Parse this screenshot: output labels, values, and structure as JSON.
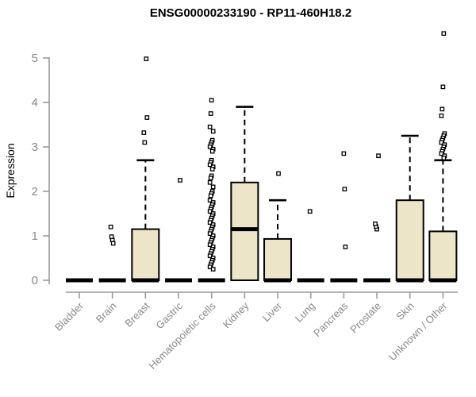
{
  "chart_data": {
    "type": "boxplot",
    "title": "ENSG00000233190 - RP11-460H18.2",
    "ylabel": "Expression",
    "xlabel": "",
    "yticks": [
      0,
      1,
      2,
      3,
      4,
      5
    ],
    "ylim": [
      0,
      5.7
    ],
    "grid": false,
    "legend": null,
    "categories": [
      "Bladder",
      "Brain",
      "Breast",
      "Gastric",
      "Hematopoietic cells",
      "Kidney",
      "Liver",
      "Lung",
      "Pancreas",
      "Prostate",
      "Skin",
      "Unknown / Other"
    ],
    "series": [
      {
        "name": "Bladder",
        "q1": 0,
        "median": 0,
        "q3": 0,
        "whisker_low": 0,
        "whisker_high": 0,
        "outliers": []
      },
      {
        "name": "Brain",
        "q1": 0,
        "median": 0,
        "q3": 0,
        "whisker_low": 0,
        "whisker_high": 0,
        "outliers": [
          0.83,
          0.91,
          0.98,
          1.2
        ]
      },
      {
        "name": "Breast",
        "q1": 0,
        "median": 0,
        "q3": 1.15,
        "whisker_low": 0,
        "whisker_high": 2.7,
        "outliers": [
          3.1,
          3.32,
          3.66,
          4.98
        ]
      },
      {
        "name": "Gastric",
        "q1": 0,
        "median": 0,
        "q3": 0,
        "whisker_low": 0,
        "whisker_high": 0,
        "outliers": [
          2.25
        ]
      },
      {
        "name": "Hematopoietic cells",
        "q1": 0,
        "median": 0,
        "q3": 0,
        "whisker_low": 0,
        "whisker_high": 0,
        "outliers": [
          4.05,
          3.75,
          3.45,
          3.35,
          3.15,
          3.1,
          3.05,
          3.0,
          2.95,
          2.9,
          2.7,
          2.65,
          2.6,
          2.55,
          2.5,
          2.35,
          2.3,
          2.2,
          2.1,
          2.0,
          1.95,
          1.9,
          1.8,
          1.75,
          1.7,
          1.65,
          1.6,
          1.55,
          1.5,
          1.45,
          1.4,
          1.35,
          1.3,
          1.25,
          1.2,
          1.15,
          1.1,
          1.05,
          1.0,
          0.95,
          0.9,
          0.85,
          0.8,
          0.75,
          0.7,
          0.65,
          0.6,
          0.55,
          0.5,
          0.45,
          0.4,
          0.35,
          0.3,
          0.25
        ]
      },
      {
        "name": "Kidney",
        "q1": 0,
        "median": 1.15,
        "q3": 2.2,
        "whisker_low": 0,
        "whisker_high": 3.9,
        "outliers": []
      },
      {
        "name": "Liver",
        "q1": 0,
        "median": 0,
        "q3": 0.93,
        "whisker_low": 0,
        "whisker_high": 1.8,
        "outliers": [
          2.4
        ]
      },
      {
        "name": "Lung",
        "q1": 0,
        "median": 0,
        "q3": 0,
        "whisker_low": 0,
        "whisker_high": 0,
        "outliers": [
          1.55
        ]
      },
      {
        "name": "Pancreas",
        "q1": 0,
        "median": 0,
        "q3": 0,
        "whisker_low": 0,
        "whisker_high": 0,
        "outliers": [
          0.75,
          2.05,
          2.85
        ]
      },
      {
        "name": "Prostate",
        "q1": 0,
        "median": 0,
        "q3": 0,
        "whisker_low": 0,
        "whisker_high": 0,
        "outliers": [
          1.15,
          1.21,
          1.27,
          2.8
        ]
      },
      {
        "name": "Skin",
        "q1": 0,
        "median": 0,
        "q3": 1.8,
        "whisker_low": 0,
        "whisker_high": 3.25,
        "outliers": []
      },
      {
        "name": "Unknown / Other",
        "q1": 0,
        "median": 0,
        "q3": 1.1,
        "whisker_low": 0,
        "whisker_high": 2.7,
        "outliers": [
          5.55,
          4.35,
          3.85,
          3.7,
          3.3,
          3.25,
          3.2,
          3.15,
          3.1,
          3.05,
          3.0,
          2.95,
          2.9,
          2.85,
          2.8,
          2.75
        ]
      }
    ],
    "colors": {
      "box_fill": "#ede5c7",
      "box_border": "#000000",
      "median": "#000000",
      "whisker": "#000000",
      "outlier_stroke": "#000000",
      "outlier_fill": "#ffffff",
      "axis_line": "#9b9b9b",
      "tick_label": "#8a8a8a",
      "title_color": "#000000",
      "background": "#ffffff"
    }
  }
}
